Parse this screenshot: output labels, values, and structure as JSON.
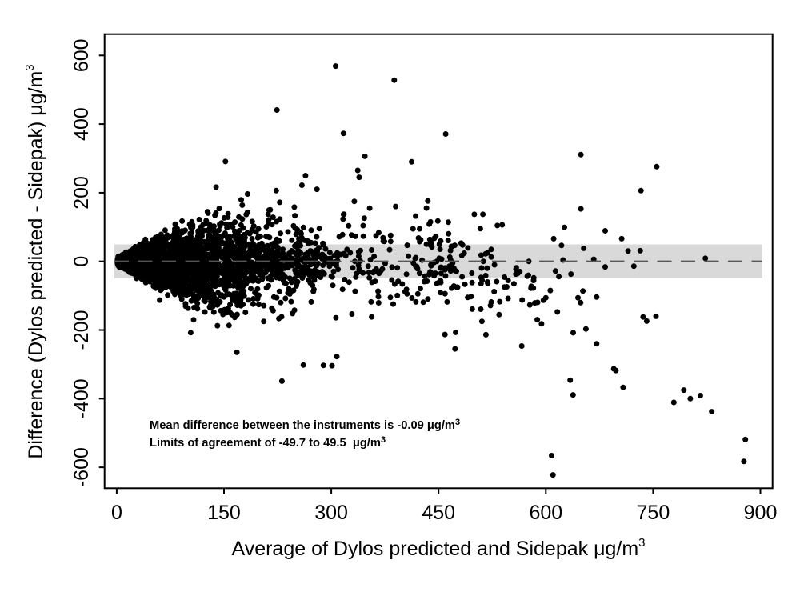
{
  "figure": {
    "background": "#ffffff"
  },
  "chart_data": {
    "type": "scatter",
    "xlabel": {
      "text": "Average of Dylos predicted and Sidepak μg/m",
      "sup": "3"
    },
    "ylabel": {
      "text": "Difference (Dylos predicted - Sidepak) μg/m",
      "sup": "3"
    },
    "x_range": [
      -17,
      917
    ],
    "y_range": [
      -661,
      662
    ],
    "xticks": [
      0,
      150,
      300,
      450,
      600,
      750,
      900
    ],
    "yticks": [
      -600,
      -400,
      -200,
      0,
      200,
      400,
      600
    ],
    "grid": false,
    "mean_difference": -0.09,
    "limits_of_agreement": [
      -49.7,
      49.5
    ],
    "annotation": {
      "line1": {
        "text": "Mean difference between the instruments is -0.09 μg/m",
        "sup": "3"
      },
      "line2": {
        "text": "Limits of agreement of -49.7 to 49.5  μg/m",
        "sup": "3"
      }
    },
    "colors": {
      "point": "#000000",
      "band": "#d9d9d9",
      "mean_line": "#565656",
      "axis": "#000000"
    },
    "points": {
      "outliers": [
        [
          306,
          569
        ],
        [
          388,
          528
        ],
        [
          224,
          441
        ],
        [
          317,
          373
        ],
        [
          460,
          371
        ],
        [
          347,
          306
        ],
        [
          152,
          291
        ],
        [
          337,
          265
        ],
        [
          339,
          245
        ],
        [
          264,
          250
        ],
        [
          259,
          222
        ],
        [
          280,
          210
        ],
        [
          223,
          206
        ],
        [
          228,
          172
        ],
        [
          390,
          160
        ],
        [
          435,
          176
        ],
        [
          418,
          132
        ],
        [
          649,
          311
        ],
        [
          755,
          276
        ],
        [
          733,
          206
        ],
        [
          649,
          153
        ],
        [
          500,
          137
        ],
        [
          512,
          137
        ],
        [
          626,
          99
        ],
        [
          683,
          89
        ],
        [
          611,
          66
        ],
        [
          706,
          66
        ],
        [
          653,
          38
        ],
        [
          715,
          30
        ],
        [
          732,
          31
        ],
        [
          624,
          4
        ],
        [
          667,
          6
        ],
        [
          683,
          -16
        ],
        [
          723,
          -14
        ],
        [
          823,
          9
        ],
        [
          168,
          -265
        ],
        [
          231,
          -349
        ],
        [
          261,
          -302
        ],
        [
          289,
          -303
        ],
        [
          301,
          -304
        ],
        [
          459,
          -213
        ],
        [
          473,
          -255
        ],
        [
          588,
          -170
        ],
        [
          594,
          -182
        ],
        [
          600,
          -106
        ],
        [
          645,
          -106
        ],
        [
          671,
          -104
        ],
        [
          656,
          -197
        ],
        [
          671,
          -240
        ],
        [
          736,
          -162
        ],
        [
          741,
          -174
        ],
        [
          754,
          -160
        ],
        [
          695,
          -313
        ],
        [
          698,
          -318
        ],
        [
          708,
          -367
        ],
        [
          634,
          -346
        ],
        [
          638,
          -389
        ],
        [
          779,
          -411
        ],
        [
          793,
          -375
        ],
        [
          802,
          -400
        ],
        [
          816,
          -391
        ],
        [
          832,
          -438
        ],
        [
          879,
          -519
        ],
        [
          877,
          -583
        ],
        [
          608,
          -566
        ],
        [
          610,
          -622
        ]
      ],
      "cloud_seed": 7,
      "cloud_groups": [
        {
          "n": 1750,
          "xdist": "halfnorm",
          "x0": 1,
          "xscale": 30,
          "xmax": 120,
          "mu": 0,
          "sa": 4,
          "sb": 0.42,
          "smax": 80,
          "tailP": 0.05,
          "tailM": 2.0,
          "clipA": 12,
          "clipB": 1.25,
          "ymin": -640,
          "ymax": 640
        },
        {
          "n": 1250,
          "xdist": "halfnorm",
          "x0": 20,
          "xscale": 72,
          "xmax": 280,
          "mu": -4,
          "sa": 6,
          "sb": 0.48,
          "smax": 82,
          "tailP": 0.08,
          "tailM": 1.6,
          "clipA": 20,
          "clipB": 1.1,
          "ymin": -300,
          "ymax": 300
        },
        {
          "n": 220,
          "xdist": "uniform",
          "x0": 150,
          "xmax": 310,
          "mu": -5,
          "sa": 24,
          "sb": 0,
          "smax": 24,
          "tailP": 0.1,
          "tailM": 1.6,
          "ymin": -72,
          "ymax": 72
        },
        {
          "n": 150,
          "xdist": "uniform",
          "x0": 60,
          "xmax": 200,
          "mu": -20,
          "sa": 0,
          "sb": 0,
          "smax": 0,
          "halfside": -70,
          "tailP": 0,
          "tailM": 1,
          "ymin": -210,
          "ymax": -8
        },
        {
          "n": 110,
          "xdist": "uniform",
          "x0": 60,
          "xmax": 230,
          "mu": 15,
          "sa": 0,
          "sb": 0,
          "smax": 0,
          "halfside": 56,
          "tailP": 0,
          "tailM": 1,
          "ymin": 8,
          "ymax": 185
        },
        {
          "n": 380,
          "xdist": "uniform",
          "x0": 95,
          "xmax": 285,
          "mu": 0,
          "sa": 54,
          "sb": 0,
          "smax": 54,
          "tailP": 0.12,
          "tailM": 1.8,
          "ymin": -280,
          "ymax": 280
        },
        {
          "n": 140,
          "xdist": "uniform",
          "x0": 300,
          "xmax": 470,
          "mu": -5,
          "sa": 60,
          "sb": 0,
          "smax": 60,
          "tailP": 0.12,
          "tailM": 1.8,
          "ymin": -300,
          "ymax": 300
        },
        {
          "n": 88,
          "xdist": "uniform",
          "x0": 435,
          "xmax": 585,
          "mu": -35,
          "sa": 75,
          "sb": 0,
          "smax": 75,
          "tailP": 0.08,
          "tailM": 1.5,
          "ymin": -270,
          "ymax": 160
        },
        {
          "n": 13,
          "xdist": "uniform",
          "x0": 565,
          "xmax": 655,
          "mu": -70,
          "sa": 70,
          "sb": 0,
          "smax": 70,
          "tailP": 0,
          "tailM": 1,
          "ymin": -255,
          "ymax": 60
        }
      ]
    }
  }
}
